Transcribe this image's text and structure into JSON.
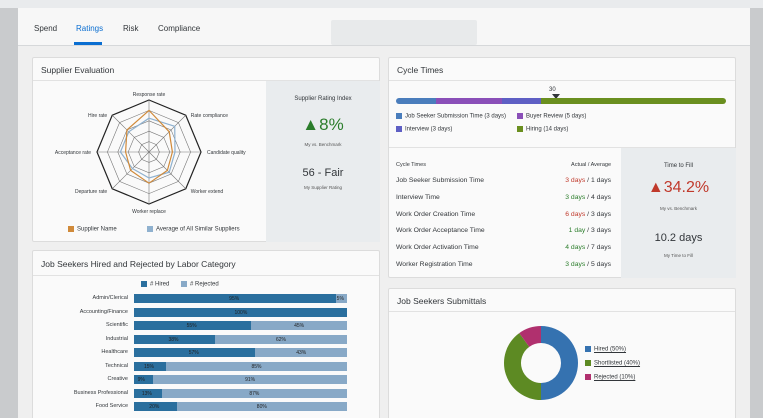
{
  "tabs": [
    {
      "label": "Spend"
    },
    {
      "label": "Ratings"
    },
    {
      "label": "Risk"
    },
    {
      "label": "Compliance"
    }
  ],
  "active_tab": "Ratings",
  "colors": {
    "accent": "#0a6ed1",
    "supplier_name": "#d08a3a",
    "similar_suppliers": "#8fb1cf",
    "positive": "#2b7d2b",
    "negative": "#c0392b",
    "hired": "#2a6f9e",
    "rejected": "#88a9c7",
    "submission": "#4a7dbc",
    "buyer_review": "#8a4fb8",
    "interview": "#5e5fc4",
    "hiring": "#6a8f1f",
    "donut_hired": "#3572b0",
    "donut_shortlisted": "#5d8a23",
    "donut_rejected": "#b0306e"
  },
  "supplier_evaluation": {
    "title": "Supplier Evaluation",
    "axes": [
      "Response rate",
      "Rate compliance",
      "Candidate quality",
      "Worker extend",
      "Worker replace",
      "Departure rate",
      "Acceptance rate",
      "Hire rate"
    ],
    "supplier_values": [
      0.8,
      0.55,
      0.45,
      0.5,
      0.6,
      0.5,
      0.45,
      0.6
    ],
    "similar_values": [
      0.65,
      0.7,
      0.5,
      0.55,
      0.5,
      0.45,
      0.55,
      0.55
    ],
    "legend": {
      "supplier": "Supplier Name",
      "similar": "Average of All Similar Suppliers"
    },
    "index_title": "Supplier Rating Index",
    "index_value": "8%",
    "index_arrow": "▲",
    "index_caption": "My vs. Benchmark",
    "rating_value": "56 - Fair",
    "rating_caption": "My Supplier Rating"
  },
  "cycle_times": {
    "title": "Cycle Times",
    "marker_label": "30",
    "segments": [
      {
        "name": "Job Seeker Submission Time (3 days)",
        "days": 3
      },
      {
        "name": "Buyer Review (5 days)",
        "days": 5
      },
      {
        "name": "Interview (3 days)",
        "days": 3
      },
      {
        "name": "Hiring (14 days)",
        "days": 14
      }
    ],
    "col_label": "Cycle Times",
    "col_value": "Actual / Average",
    "rows": [
      {
        "label": "Job Seeker Submission Time",
        "actual": "3 days",
        "avg": " / 1 days",
        "status": "negative"
      },
      {
        "label": "Interview Time",
        "actual": "3 days",
        "avg": " / 4 days",
        "status": "positive"
      },
      {
        "label": "Work Order Creation Time",
        "actual": "6 days",
        "avg": " / 3 days",
        "status": "negative"
      },
      {
        "label": "Work Order Acceptance Time",
        "actual": "1 day",
        "avg": " / 3 days",
        "status": "positive"
      },
      {
        "label": "Work Order Activation Time",
        "actual": "4 days",
        "avg": " / 7 days",
        "status": "positive"
      },
      {
        "label": "Worker Registration Time",
        "actual": "3 days",
        "avg": " / 5 days",
        "status": "positive"
      }
    ],
    "ttf_title": "Time to Fill",
    "ttf_arrow": "▲",
    "ttf_value": "34.2%",
    "ttf_caption": "My vs. Benchmark",
    "my_ttf_value": "10.2 days",
    "my_ttf_caption": "My Time to Fill"
  },
  "labor_category": {
    "title": "Job Seekers Hired and Rejected by Labor Category",
    "legend_hired": "# Hired",
    "legend_rejected": "# Rejected",
    "rows": [
      {
        "label": "Admin/Clerical",
        "hired": 95,
        "rejected": 5,
        "hired_text": "95%",
        "rejected_text": "5%"
      },
      {
        "label": "Accounting/Finance",
        "hired": 100,
        "rejected": 0,
        "hired_text": "100%",
        "rejected_text": ""
      },
      {
        "label": "Scientific",
        "hired": 55,
        "rejected": 45,
        "hired_text": "55%",
        "rejected_text": "45%"
      },
      {
        "label": "Industrial",
        "hired": 38,
        "rejected": 62,
        "hired_text": "38%",
        "rejected_text": "62%"
      },
      {
        "label": "Healthcare",
        "hired": 57,
        "rejected": 43,
        "hired_text": "57%",
        "rejected_text": "43%"
      },
      {
        "label": "Technical",
        "hired": 15,
        "rejected": 85,
        "hired_text": "15%",
        "rejected_text": "85%"
      },
      {
        "label": "Creative",
        "hired": 9,
        "rejected": 91,
        "hired_text": "9%",
        "rejected_text": "91%"
      },
      {
        "label": "Business Professional",
        "hired": 13,
        "rejected": 87,
        "hired_text": "13%",
        "rejected_text": "87%"
      },
      {
        "label": "Food Service",
        "hired": 20,
        "rejected": 80,
        "hired_text": "20%",
        "rejected_text": "80%"
      }
    ]
  },
  "submittals": {
    "title": "Job Seekers Submittals",
    "slices": [
      {
        "label": "Hired (50%)",
        "value": 50
      },
      {
        "label": "Shortlisted (40%)",
        "value": 40
      },
      {
        "label": "Rejected (10%)",
        "value": 10
      }
    ]
  }
}
